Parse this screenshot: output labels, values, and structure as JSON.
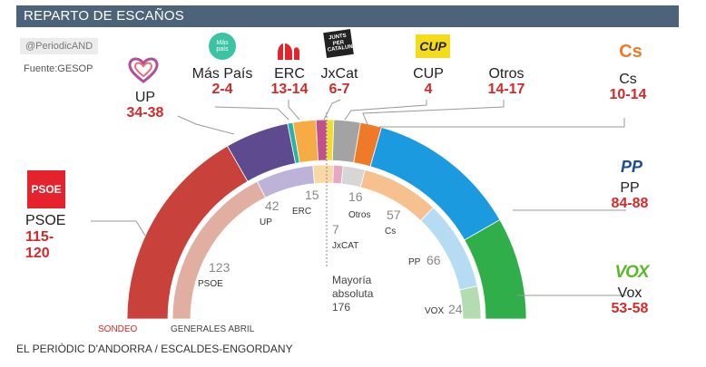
{
  "header": {
    "title": "REPARTO DE ESCAÑOS"
  },
  "credit": "@PeriodicAND",
  "source": "Fuente:GESOP",
  "footer": "EL PERIÒDIC D'ANDORRA / ESCALDES-ENGORDANY",
  "outer_ring_label": "SONDEO",
  "inner_ring_label": "GENERALES ABRIL",
  "majority": {
    "line1": "Mayoría",
    "line2": "absoluta",
    "value": "176"
  },
  "logos": {
    "mas_pais": "Más país",
    "cs": "Cs",
    "psoe": "PSOE",
    "pp": "PP",
    "vox": "VOX",
    "cup": "CUP",
    "jxcat": "JUNTS PER CATALUNYA"
  },
  "parties": [
    {
      "key": "up",
      "name": "UP",
      "seats": "34-38"
    },
    {
      "key": "mp",
      "name": "Más País",
      "seats": "2-4"
    },
    {
      "key": "erc",
      "name": "ERC",
      "seats": "13-14"
    },
    {
      "key": "jxcat",
      "name": "JxCat",
      "seats": "6-7"
    },
    {
      "key": "cup",
      "name": "CUP",
      "seats": "4"
    },
    {
      "key": "otros",
      "name": "Otros",
      "seats": "14-17"
    },
    {
      "key": "cs",
      "name": "Cs",
      "seats": "10-14"
    },
    {
      "key": "psoe",
      "name": "PSOE",
      "seats": "115-\n120"
    },
    {
      "key": "pp",
      "name": "PP",
      "seats": "84-88"
    },
    {
      "key": "vox",
      "name": "Vox",
      "seats": "53-58"
    }
  ],
  "chart_data": [
    {
      "type": "semicircle",
      "label": "SONDEO",
      "total": 350,
      "series": [
        {
          "name": "PSOE",
          "value": 117,
          "color": "#c8413b"
        },
        {
          "name": "UP",
          "value": 36,
          "color": "#5d4a8f"
        },
        {
          "name": "Más País",
          "value": 3,
          "color": "#2ab3a5"
        },
        {
          "name": "ERC",
          "value": 13,
          "color": "#f6ab45"
        },
        {
          "name": "JxCat",
          "value": 6,
          "color": "#c2508b"
        },
        {
          "name": "CUP",
          "value": 4,
          "color": "#f0dd2a"
        },
        {
          "name": "Otros",
          "value": 15,
          "color": "#a3a3a3"
        },
        {
          "name": "Cs",
          "value": 12,
          "color": "#ee7a27"
        },
        {
          "name": "PP",
          "value": 86,
          "color": "#1c9ae0"
        },
        {
          "name": "Vox",
          "value": 58,
          "color": "#2fae4a"
        }
      ]
    },
    {
      "type": "semicircle",
      "label": "GENERALES ABRIL",
      "total": 350,
      "series": [
        {
          "name": "PSOE",
          "value": 123,
          "label": "123",
          "color": "#e1aea2"
        },
        {
          "name": "UP",
          "value": 42,
          "label": "42",
          "color": "#bdb3d8"
        },
        {
          "name": "ERC",
          "value": 15,
          "label": "15",
          "color": "#fad8a5"
        },
        {
          "name": "JxCAT",
          "value": 7,
          "label": "7",
          "color": "#e5a9c4"
        },
        {
          "name": "Otros",
          "value": 16,
          "label": "16",
          "color": "#d6d6d6"
        },
        {
          "name": "Cs",
          "value": 57,
          "label": "57",
          "color": "#f7c08f"
        },
        {
          "name": "PP",
          "value": 66,
          "label": "66",
          "color": "#b5dcf3"
        },
        {
          "name": "VOX",
          "value": 24,
          "label": "24",
          "color": "#b3dcb3"
        }
      ]
    }
  ]
}
